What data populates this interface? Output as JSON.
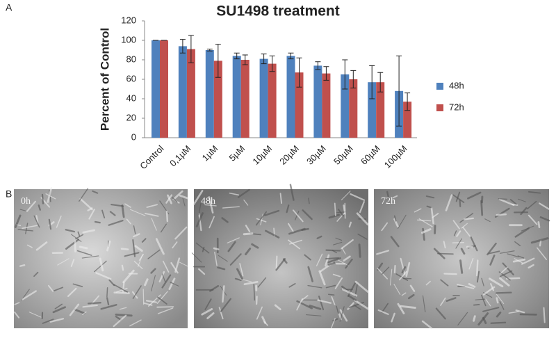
{
  "chart_data": {
    "type": "bar",
    "title": "SU1498 treatment",
    "y_label": "Percent of Control",
    "categories": [
      "Control",
      "0,1µM",
      "1µM",
      "5µM",
      "10µM",
      "20µM",
      "30µM",
      "50µM",
      "60µM",
      "100µM"
    ],
    "series": [
      {
        "name": "48h",
        "color": "#4f81bd",
        "values": [
          100,
          94,
          90,
          84,
          81,
          84,
          74,
          65,
          57,
          48
        ],
        "errors": [
          0,
          7,
          1,
          3,
          5,
          3,
          4,
          15,
          17,
          36
        ]
      },
      {
        "name": "72h",
        "color": "#c0504d",
        "values": [
          100,
          91,
          79,
          80,
          76,
          67,
          66,
          60,
          57,
          37
        ],
        "errors": [
          0,
          14,
          17,
          5,
          8,
          15,
          7,
          9,
          10,
          9
        ]
      }
    ],
    "ylim": [
      0,
      120
    ],
    "yticks": [
      0,
      20,
      40,
      60,
      80,
      100,
      120
    ],
    "legend": "right"
  },
  "panels": [
    "A",
    "B"
  ],
  "images": [
    {
      "label": "0h"
    },
    {
      "label": "48h"
    },
    {
      "label": "72h"
    }
  ]
}
